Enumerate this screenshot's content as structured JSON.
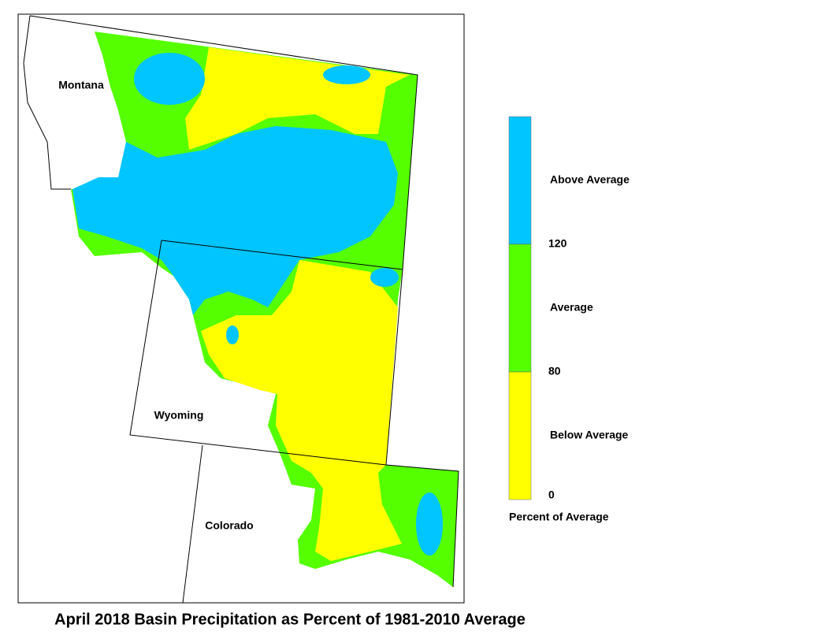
{
  "title": "April 2018 Basin Precipitation as Percent of 1981-2010 Average",
  "states": [
    {
      "label": "Montana"
    },
    {
      "label": "Wyoming"
    },
    {
      "label": "Colorado"
    }
  ],
  "legend": {
    "title": "Percent of Average",
    "ticks": [
      120,
      80,
      0
    ],
    "classes": [
      {
        "label": "Above Average",
        "color": "#00c5ff"
      },
      {
        "label": "Average",
        "color": "#55ff00"
      },
      {
        "label": "Below Average",
        "color": "#ffff00"
      }
    ]
  }
}
